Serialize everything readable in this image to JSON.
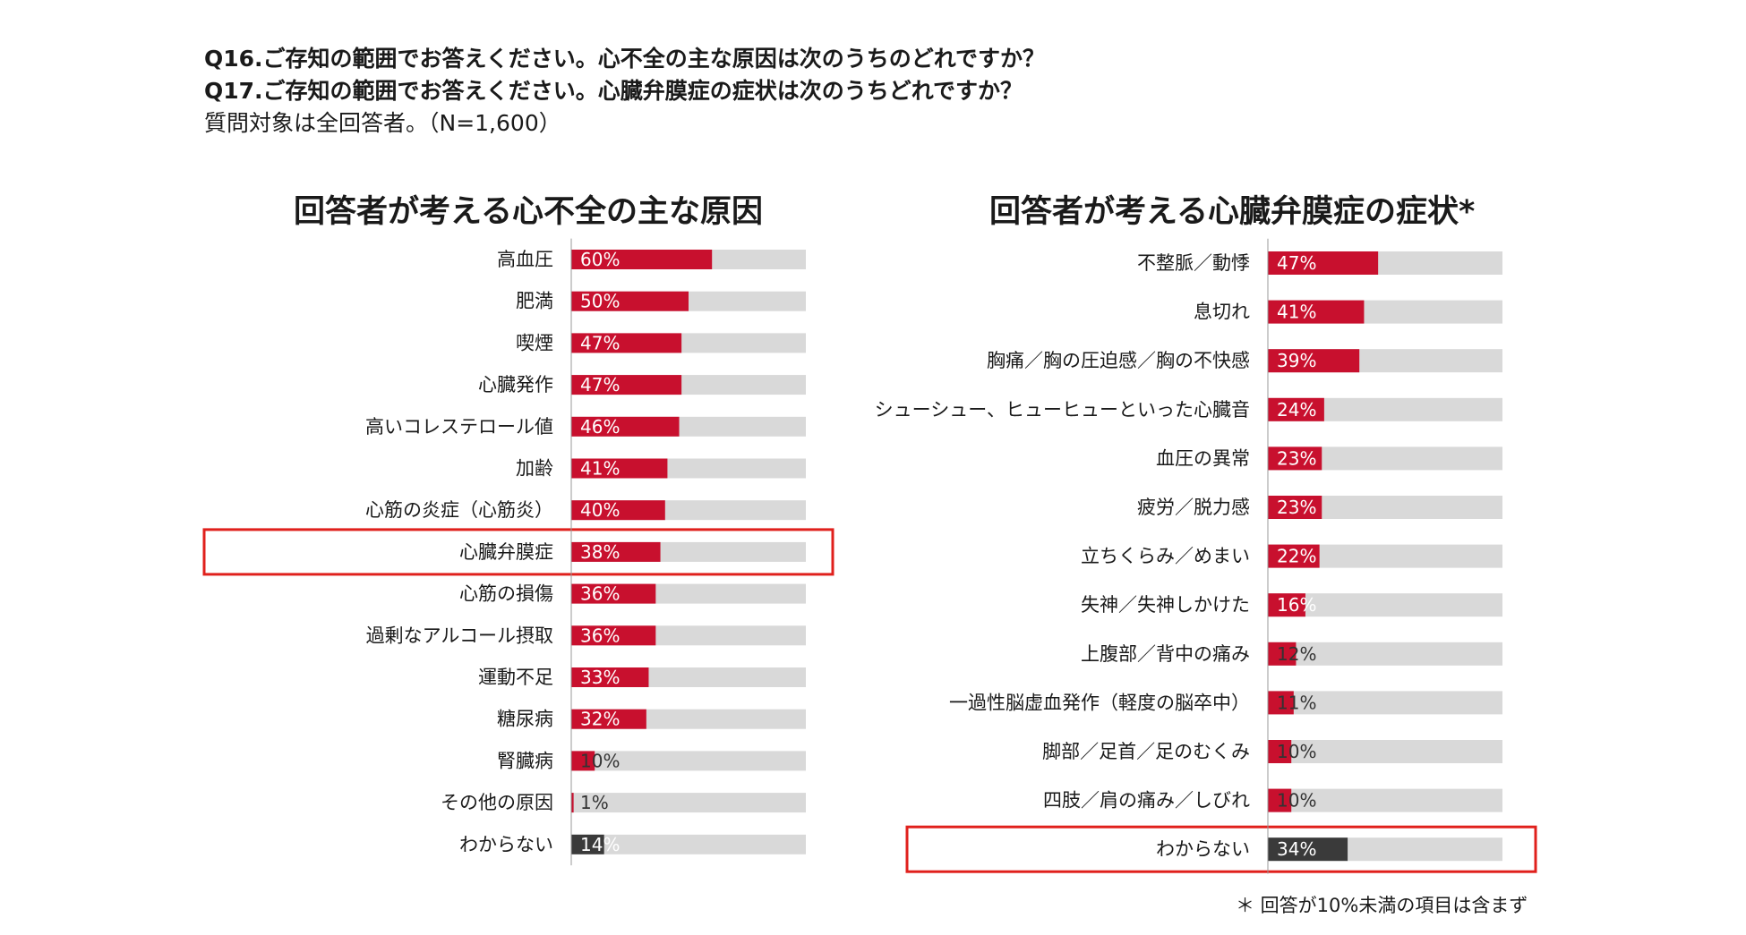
{
  "header": {
    "q16": "Q16.ご存知の範囲でお答えください。心不全の主な原因は次のうちのどれですか？",
    "q17": "Q17.ご存知の範囲でお答えください。心臓弁膜症の症状は次のうちどれですか？",
    "target": "質問対象は全回答者。（N=1,600）"
  },
  "colors": {
    "bar": "#c8102e",
    "dark": "#3a3a3a",
    "track": "#d9d9d9",
    "highlight": "#e0201c",
    "label_text": "#ffffff"
  },
  "chart_data": [
    {
      "type": "bar",
      "orientation": "horizontal",
      "title": "回答者が考える心不全の主な原因",
      "unit": "%",
      "xlim": [
        0,
        100
      ],
      "categories": [
        "高血圧",
        "肥満",
        "喫煙",
        "心臓発作",
        "高いコレステロール値",
        "加齢",
        "心筋の炎症（心筋炎）",
        "心臓弁膜症",
        "心筋の損傷",
        "過剰なアルコール摂取",
        "運動不足",
        "糖尿病",
        "腎臓病",
        "その他の原因",
        "わからない"
      ],
      "values": [
        60,
        50,
        47,
        47,
        46,
        41,
        40,
        38,
        36,
        36,
        33,
        32,
        10,
        1,
        14
      ],
      "labels": [
        "60%",
        "50%",
        "47%",
        "47%",
        "46%",
        "41%",
        "40%",
        "38%",
        "36%",
        "36%",
        "33%",
        "32%",
        "10%",
        "1%",
        "14%"
      ],
      "dark_categories": [
        "わからない"
      ],
      "highlighted": [
        "心臓弁膜症"
      ]
    },
    {
      "type": "bar",
      "orientation": "horizontal",
      "title": "回答者が考える心臓弁膜症の症状*",
      "unit": "%",
      "xlim": [
        0,
        100
      ],
      "categories": [
        "不整脈／動悸",
        "息切れ",
        "胸痛／胸の圧迫感／胸の不快感",
        "シューシュー、ヒューヒューといった心臓音",
        "血圧の異常",
        "疲労／脱力感",
        "立ちくらみ／めまい",
        "失神／失神しかけた",
        "上腹部／背中の痛み",
        "一過性脳虚血発作（軽度の脳卒中）",
        "脚部／足首／足のむくみ",
        "四肢／肩の痛み／しびれ",
        "わからない"
      ],
      "values": [
        47,
        41,
        39,
        24,
        23,
        23,
        22,
        16,
        12,
        11,
        10,
        10,
        34
      ],
      "labels": [
        "47%",
        "41%",
        "39%",
        "24%",
        "23%",
        "23%",
        "22%",
        "16%",
        "12%",
        "11%",
        "10%",
        "10%",
        "34%"
      ],
      "dark_categories": [
        "わからない"
      ],
      "highlighted": [
        "わからない"
      ]
    }
  ],
  "footnote": "＊ 回答が10%未満の項目は含まず"
}
